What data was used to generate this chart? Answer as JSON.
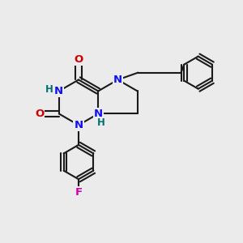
{
  "bg_color": "#ebebeb",
  "bond_color": "#1a1a1a",
  "bond_width": 1.5,
  "atom_colors": {
    "N": "#1010ee",
    "O": "#cc0000",
    "F": "#cc00aa",
    "H_label": "#007070",
    "C": "#1a1a1a"
  },
  "font_size_atom": 9.5,
  "font_size_H": 8.5
}
